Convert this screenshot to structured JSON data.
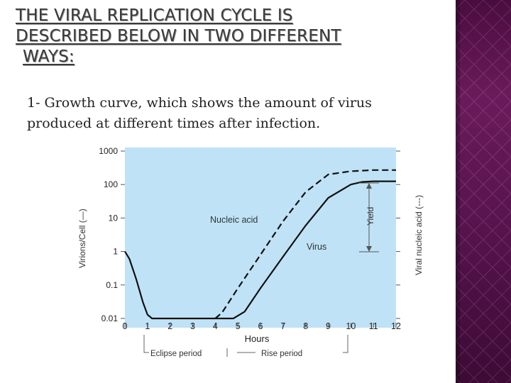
{
  "slide": {
    "title_lines": [
      "THE VIRAL REPLICATION CYCLE IS",
      "DESCRIBED BELOW IN TWO DIFFERENT",
      "WAYS:"
    ],
    "body_lines": [
      "1- Growth curve, which shows the amount of virus",
      "produced at different times after infection."
    ]
  },
  "colors": {
    "plot_bg": "#bfe2f6",
    "side_panel": "#5a1450",
    "curve": "#111111"
  },
  "chart_data": {
    "type": "line",
    "xlabel": "Hours",
    "ylabel_left": "Virions/Cell (—)",
    "ylabel_right": "Viral nucleic acid (---)",
    "y_scale": "log",
    "x_ticks": [
      "0",
      "1",
      "2",
      "3",
      "4",
      "5",
      "6",
      "7",
      "8",
      "9",
      "10",
      "11",
      "12"
    ],
    "y_ticks": [
      "1000",
      "100",
      "10",
      "1",
      "0.1",
      "0.01"
    ],
    "xlim": [
      0,
      12
    ],
    "ylim": [
      0.01,
      1000
    ],
    "series": [
      {
        "name": "Virus",
        "style": "solid",
        "x": [
          0,
          0.2,
          0.5,
          0.8,
          1.0,
          1.2,
          1.5,
          4.8,
          5.3,
          6,
          7,
          8,
          9,
          10,
          10.5,
          11,
          12
        ],
        "y": [
          1,
          0.6,
          0.15,
          0.03,
          0.013,
          0.01,
          0.01,
          0.01,
          0.016,
          0.08,
          0.7,
          6,
          40,
          100,
          120,
          125,
          125
        ]
      },
      {
        "name": "Nucleic acid",
        "style": "dashed",
        "x": [
          4,
          4.3,
          5,
          6,
          7,
          8,
          9,
          10,
          10.5,
          11,
          12
        ],
        "y": [
          0.01,
          0.015,
          0.08,
          0.8,
          8,
          60,
          200,
          250,
          260,
          270,
          270
        ]
      }
    ],
    "annotations": {
      "yield": "Yield",
      "eclipse": "Eclipse period",
      "rise": "Rise period"
    }
  }
}
